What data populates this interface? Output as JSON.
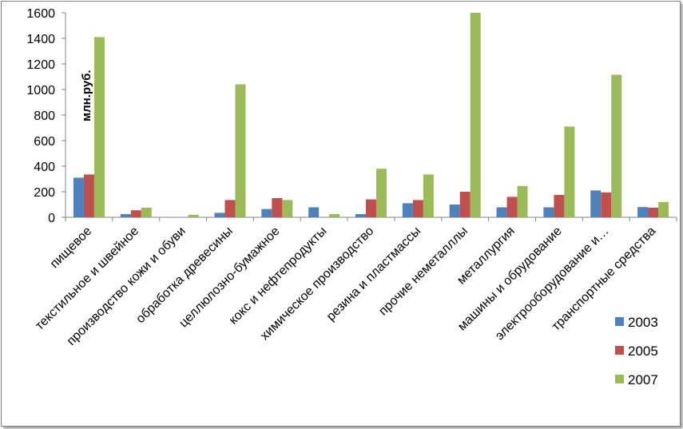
{
  "chart_data": {
    "type": "bar",
    "ylabel": "млн.руб.",
    "ylim": [
      0,
      1600
    ],
    "yticks": [
      0,
      200,
      400,
      600,
      800,
      1000,
      1200,
      1400,
      1600
    ],
    "grid": false,
    "legend_position": "bottom-right",
    "categories": [
      "пищевое",
      "текстильное и швейное",
      "производство кожи и обуви",
      "обработка древесины",
      "целлюлозно-бумажное",
      "кокс и нефтепродукты",
      "химическое производство",
      "резина и пластмассы",
      "прочие неметалллы",
      "металлургия",
      "машины и обрудование",
      "электрооборудование и…",
      "транспортные средства"
    ],
    "series": [
      {
        "name": "2003",
        "color": "#4f81bd",
        "values": [
          310,
          25,
          0,
          35,
          65,
          78,
          25,
          110,
          100,
          78,
          78,
          210,
          80
        ]
      },
      {
        "name": "2005",
        "color": "#c0504d",
        "values": [
          335,
          55,
          0,
          135,
          150,
          0,
          140,
          135,
          200,
          160,
          175,
          195,
          75
        ]
      },
      {
        "name": "2007",
        "color": "#9bbb59",
        "values": [
          1410,
          75,
          20,
          1040,
          135,
          25,
          380,
          335,
          1600,
          245,
          710,
          1115,
          120
        ]
      }
    ]
  }
}
